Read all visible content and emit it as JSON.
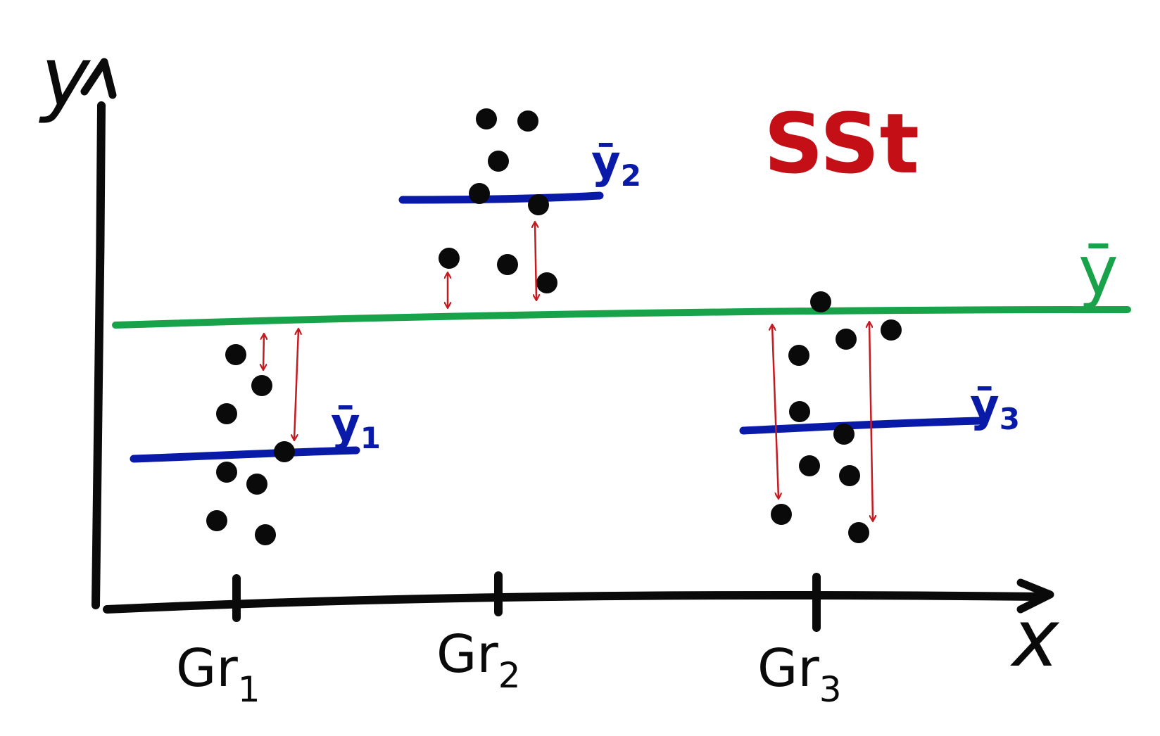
{
  "title": "SSt",
  "axes": {
    "x_label": "x",
    "y_label": "y"
  },
  "grand_mean_label": "ȳ",
  "groups": [
    {
      "tick_label": "Gr1",
      "main": "Gr",
      "sub": "1",
      "mean_label": "ȳ",
      "mean_sub": "1"
    },
    {
      "tick_label": "Gr2",
      "main": "Gr",
      "sub": "2",
      "mean_label": "ȳ",
      "mean_sub": "2"
    },
    {
      "tick_label": "Gr3",
      "main": "Gr",
      "sub": "3",
      "mean_label": "ȳ",
      "mean_sub": "3"
    }
  ],
  "colors": {
    "ink": "#0a0a0a",
    "title": "#c40f17",
    "grand_mean": "#18a34a",
    "group_mean": "#0a1aa8",
    "deviation_arrow": "#c41a20"
  }
}
